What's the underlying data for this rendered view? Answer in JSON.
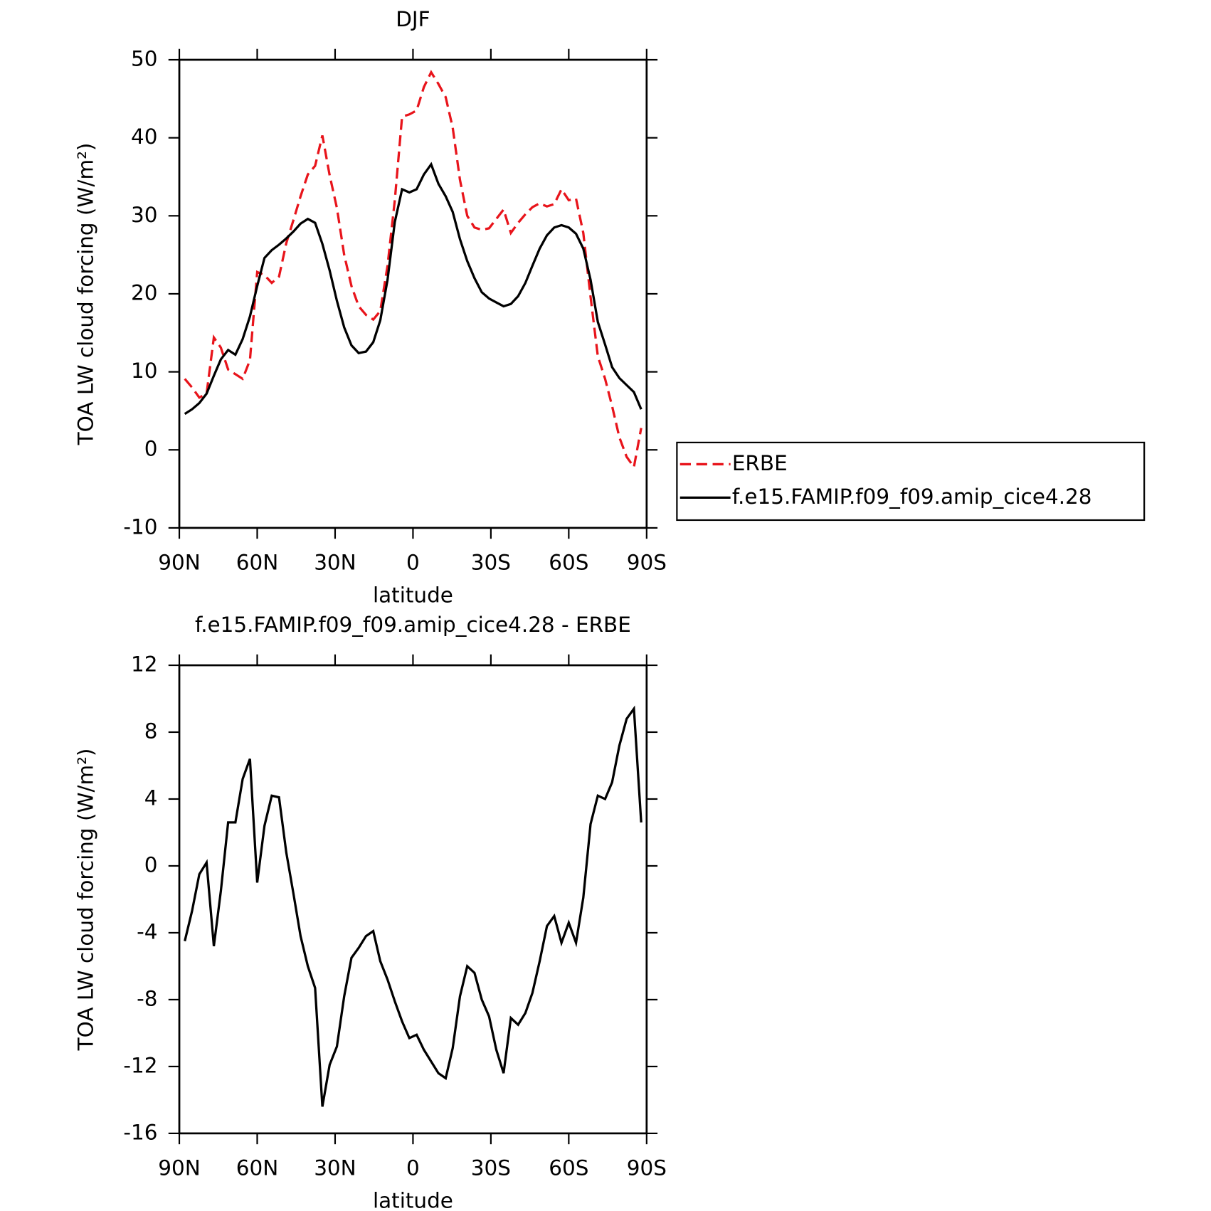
{
  "chart_data": [
    {
      "type": "line",
      "title": "DJF",
      "xlabel": "latitude",
      "ylabel": "TOA LW cloud forcing (W/m²)",
      "x": [
        87.9,
        85.1,
        82.3,
        79.5,
        76.7,
        74.0,
        71.2,
        68.4,
        65.6,
        62.8,
        60.0,
        57.2,
        54.4,
        51.6,
        48.8,
        46.0,
        43.3,
        40.5,
        37.7,
        34.9,
        32.1,
        29.3,
        26.5,
        23.7,
        20.9,
        18.1,
        15.3,
        12.6,
        9.8,
        7.0,
        4.2,
        1.4,
        -1.4,
        -4.2,
        -7.0,
        -9.8,
        -12.6,
        -15.3,
        -18.1,
        -20.9,
        -23.7,
        -26.5,
        -29.3,
        -32.1,
        -34.9,
        -37.7,
        -40.5,
        -43.3,
        -46.0,
        -48.8,
        -51.6,
        -54.4,
        -57.2,
        -60.0,
        -62.8,
        -65.6,
        -68.4,
        -71.2,
        -74.0,
        -76.7,
        -79.5,
        -82.3,
        -85.1,
        -87.9
      ],
      "xlim": [
        90,
        -90
      ],
      "xticks": [
        {
          "value": 90,
          "label": "90N"
        },
        {
          "value": 60,
          "label": "60N"
        },
        {
          "value": 30,
          "label": "30N"
        },
        0,
        {
          "value": -30,
          "label": "30S"
        },
        {
          "value": -60,
          "label": "60S"
        },
        {
          "value": -90,
          "label": "90S"
        }
      ],
      "ylim": [
        -10,
        50
      ],
      "yticks": [
        -10,
        0,
        10,
        20,
        30,
        40,
        50
      ],
      "legend": "right",
      "series": [
        {
          "name": "ERBE",
          "color": "#e8141b",
          "dashed": true,
          "values": [
            9.1,
            8,
            6.7,
            7.2,
            14.4,
            13.1,
            10.3,
            9.7,
            9.1,
            11.5,
            22.8,
            22.4,
            21.4,
            22.2,
            26.5,
            29.5,
            32.5,
            35.3,
            36.4,
            40.3,
            35.2,
            31,
            25,
            21,
            18.4,
            17.3,
            16.7,
            17.8,
            23.6,
            32,
            42.7,
            43,
            43.5,
            46.5,
            48.4,
            46.9,
            45.2,
            41.3,
            34.6,
            30,
            28.5,
            28.2,
            28.4,
            29.6,
            30.8,
            27.8,
            29.1,
            30.2,
            31.1,
            31.6,
            31.2,
            31.5,
            33.4,
            32,
            32.2,
            27.8,
            19.6,
            12,
            9.1,
            5.6,
            1.6,
            -0.9,
            -2.2,
            2.8
          ]
        },
        {
          "name": "f.e15.FAMIP.f09_f09.amip_cice4.28",
          "color": "#000000",
          "dashed": false,
          "values": [
            4.6,
            5.2,
            6,
            7.2,
            9.5,
            11.6,
            12.8,
            12.2,
            14.2,
            17.1,
            21,
            24.6,
            25.6,
            26.3,
            27.1,
            28,
            29,
            29.6,
            29.1,
            26.4,
            23,
            19.1,
            15.7,
            13.4,
            12.4,
            12.6,
            13.8,
            16.6,
            21.8,
            29.2,
            33.4,
            33,
            33.4,
            35.3,
            36.6,
            34.1,
            32.5,
            30.5,
            27,
            24.2,
            22,
            20.2,
            19.4,
            18.9,
            18.4,
            18.7,
            19.7,
            21.4,
            23.6,
            25.8,
            27.5,
            28.5,
            28.8,
            28.5,
            27.7,
            25.8,
            21.8,
            16.4,
            13.5,
            10.6,
            9.2,
            8.3,
            7.4,
            5.2
          ]
        }
      ]
    },
    {
      "type": "line",
      "title": "f.e15.FAMIP.f09_f09.amip_cice4.28 - ERBE",
      "xlabel": "latitude",
      "ylabel": "TOA LW cloud forcing (W/m²)",
      "x": [
        87.9,
        85.1,
        82.3,
        79.5,
        76.7,
        74.0,
        71.2,
        68.4,
        65.6,
        62.8,
        60.0,
        57.2,
        54.4,
        51.6,
        48.8,
        46.0,
        43.3,
        40.5,
        37.7,
        34.9,
        32.1,
        29.3,
        26.5,
        23.7,
        20.9,
        18.1,
        15.3,
        12.6,
        9.8,
        7.0,
        4.2,
        1.4,
        -1.4,
        -4.2,
        -7.0,
        -9.8,
        -12.6,
        -15.3,
        -18.1,
        -20.9,
        -23.7,
        -26.5,
        -29.3,
        -32.1,
        -34.9,
        -37.7,
        -40.5,
        -43.3,
        -46.0,
        -48.8,
        -51.6,
        -54.4,
        -57.2,
        -60.0,
        -62.8,
        -65.6,
        -68.4,
        -71.2,
        -74.0,
        -76.7,
        -79.5,
        -82.3,
        -85.1,
        -87.9
      ],
      "xlim": [
        90,
        -90
      ],
      "xticks": [
        {
          "value": 90,
          "label": "90N"
        },
        {
          "value": 60,
          "label": "60N"
        },
        {
          "value": 30,
          "label": "30N"
        },
        0,
        {
          "value": -30,
          "label": "30S"
        },
        {
          "value": -60,
          "label": "60S"
        },
        {
          "value": -90,
          "label": "90S"
        }
      ],
      "ylim": [
        -16,
        12
      ],
      "yticks": [
        -16,
        -12,
        -8,
        -4,
        0,
        4,
        8,
        12
      ],
      "color": "#000000",
      "values": [
        -4.5,
        -2.7,
        -0.5,
        0.2,
        -4.8,
        -1.5,
        2.6,
        2.6,
        5.2,
        6.4,
        -1,
        2.4,
        4.2,
        4.1,
        0.8,
        -1.7,
        -4.2,
        -6,
        -7.3,
        -14.4,
        -11.9,
        -10.8,
        -7.8,
        -5.5,
        -4.9,
        -4.2,
        -3.9,
        -5.7,
        -6.8,
        -8.1,
        -9.3,
        -10.3,
        -10.1,
        -11,
        -11.7,
        -12.4,
        -12.7,
        -10.9,
        -7.8,
        -6,
        -6.4,
        -8,
        -9,
        -11,
        -12.4,
        -9.1,
        -9.5,
        -8.8,
        -7.6,
        -5.7,
        -3.6,
        -3,
        -4.6,
        -3.4,
        -4.6,
        -1.9,
        2.5,
        4.2,
        4,
        5,
        7.2,
        8.8,
        9.4,
        2.6
      ]
    }
  ]
}
